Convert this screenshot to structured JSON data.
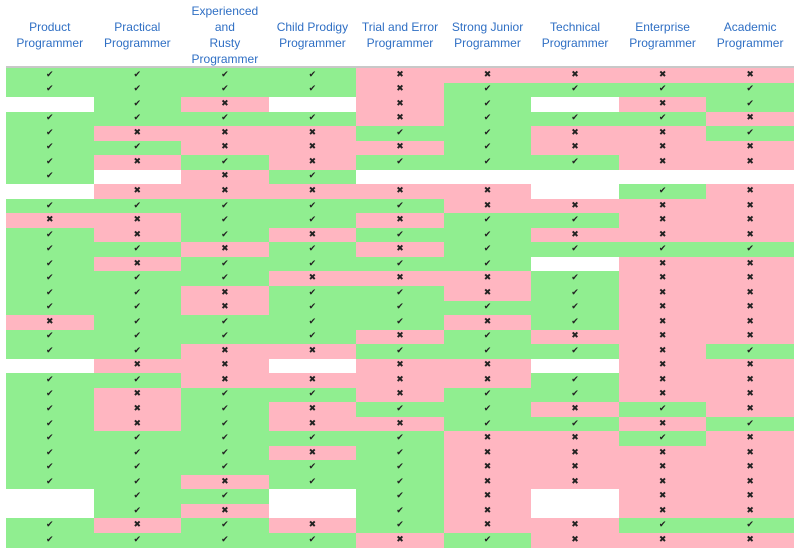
{
  "chart_data": {
    "type": "table",
    "columns": [
      "Product\nProgrammer",
      "Practical\nProgrammer",
      "Experienced and\nRusty\nProgrammer",
      "Child Prodigy\nProgrammer",
      "Trial and Error\nProgrammer",
      "Strong Junior\nProgrammer",
      "Technical\nProgrammer",
      "Enterprise\nProgrammer",
      "Academic\nProgrammer"
    ],
    "legend": {
      "Y": "✔",
      "N": "✖",
      "_": ""
    },
    "colors": {
      "Y": "#90ee90",
      "N": "#ffb6c1",
      "_": "#ffffff",
      "header": "#2f6fc4"
    },
    "rows": [
      [
        "Y",
        "Y",
        "Y",
        "Y",
        "N",
        "N",
        "N",
        "N",
        "N"
      ],
      [
        "Y",
        "Y",
        "Y",
        "Y",
        "N",
        "Y",
        "Y",
        "Y",
        "Y"
      ],
      [
        "_",
        "Y",
        "N",
        "_",
        "N",
        "Y",
        "_",
        "N",
        "Y"
      ],
      [
        "Y",
        "Y",
        "Y",
        "Y",
        "N",
        "Y",
        "Y",
        "Y",
        "N"
      ],
      [
        "Y",
        "N",
        "N",
        "N",
        "Y",
        "Y",
        "N",
        "N",
        "Y"
      ],
      [
        "Y",
        "Y",
        "N",
        "N",
        "N",
        "Y",
        "N",
        "N",
        "N"
      ],
      [
        "Y",
        "N",
        "Y",
        "N",
        "Y",
        "Y",
        "Y",
        "N",
        "N"
      ],
      [
        "Y",
        "_",
        "N",
        "Y",
        "_",
        "_",
        "_",
        "_",
        "_"
      ],
      [
        "_",
        "N",
        "N",
        "N",
        "N",
        "N",
        "_",
        "Y",
        "N"
      ],
      [
        "Y",
        "Y",
        "Y",
        "Y",
        "Y",
        "N",
        "N",
        "N",
        "N"
      ],
      [
        "N",
        "N",
        "Y",
        "Y",
        "N",
        "Y",
        "Y",
        "N",
        "N"
      ],
      [
        "Y",
        "N",
        "Y",
        "N",
        "Y",
        "Y",
        "N",
        "N",
        "N"
      ],
      [
        "Y",
        "Y",
        "N",
        "Y",
        "N",
        "Y",
        "Y",
        "Y",
        "Y"
      ],
      [
        "Y",
        "N",
        "Y",
        "Y",
        "Y",
        "Y",
        "_",
        "N",
        "N"
      ],
      [
        "Y",
        "Y",
        "Y",
        "N",
        "N",
        "N",
        "Y",
        "N",
        "N"
      ],
      [
        "Y",
        "Y",
        "N",
        "Y",
        "Y",
        "N",
        "Y",
        "N",
        "N"
      ],
      [
        "Y",
        "Y",
        "N",
        "Y",
        "Y",
        "Y",
        "Y",
        "N",
        "N"
      ],
      [
        "N",
        "Y",
        "Y",
        "Y",
        "Y",
        "N",
        "Y",
        "N",
        "N"
      ],
      [
        "Y",
        "Y",
        "Y",
        "Y",
        "N",
        "Y",
        "N",
        "N",
        "N"
      ],
      [
        "Y",
        "Y",
        "N",
        "N",
        "Y",
        "Y",
        "Y",
        "N",
        "Y"
      ],
      [
        "_",
        "N",
        "N",
        "_",
        "N",
        "N",
        "_",
        "N",
        "N"
      ],
      [
        "Y",
        "Y",
        "N",
        "N",
        "N",
        "N",
        "Y",
        "N",
        "N"
      ],
      [
        "Y",
        "N",
        "Y",
        "Y",
        "N",
        "Y",
        "Y",
        "N",
        "N"
      ],
      [
        "Y",
        "N",
        "Y",
        "N",
        "Y",
        "Y",
        "N",
        "Y",
        "N"
      ],
      [
        "Y",
        "N",
        "Y",
        "N",
        "N",
        "Y",
        "Y",
        "N",
        "Y"
      ],
      [
        "Y",
        "Y",
        "Y",
        "Y",
        "Y",
        "N",
        "N",
        "Y",
        "N"
      ],
      [
        "Y",
        "Y",
        "Y",
        "N",
        "Y",
        "N",
        "N",
        "N",
        "N"
      ],
      [
        "Y",
        "Y",
        "Y",
        "Y",
        "Y",
        "N",
        "N",
        "N",
        "N"
      ],
      [
        "Y",
        "Y",
        "N",
        "Y",
        "Y",
        "N",
        "N",
        "N",
        "N"
      ],
      [
        "_",
        "Y",
        "Y",
        "_",
        "Y",
        "N",
        "_",
        "N",
        "N"
      ],
      [
        "_",
        "Y",
        "N",
        "_",
        "Y",
        "N",
        "_",
        "N",
        "N"
      ],
      [
        "Y",
        "N",
        "Y",
        "N",
        "Y",
        "N",
        "N",
        "Y",
        "Y"
      ],
      [
        "Y",
        "Y",
        "Y",
        "Y",
        "N",
        "Y",
        "N",
        "N",
        "N"
      ]
    ]
  }
}
